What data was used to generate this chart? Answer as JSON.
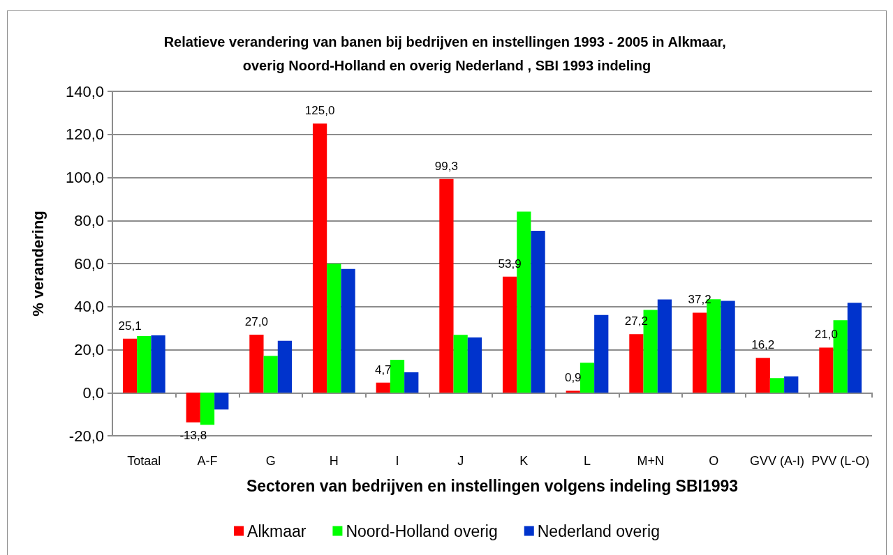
{
  "chart_data": {
    "type": "bar",
    "title": "Relatieve verandering van banen bij bedrijven en instellingen 1993 - 2005 in Alkmaar, overig Noord-Holland en overig Nederland , SBI 1993 indeling",
    "xlabel": "Sectoren van bedrijven en instellingen volgens indeling SBI1993",
    "ylabel": "% verandering",
    "categories": [
      "Totaal",
      "A-F",
      "G",
      "H",
      "I",
      "J",
      "K",
      "L",
      "M+N",
      "O",
      "GVV (A-I)",
      "PVV (L-O)"
    ],
    "ylim": [
      -20,
      140
    ],
    "yticks": [
      {
        "value": -20,
        "label": "-20,0"
      },
      {
        "value": 0,
        "label": "0,0"
      },
      {
        "value": 20,
        "label": "20,0"
      },
      {
        "value": 40,
        "label": "40,0"
      },
      {
        "value": 60,
        "label": "60,0"
      },
      {
        "value": 80,
        "label": "80,0"
      },
      {
        "value": 100,
        "label": "100,0"
      },
      {
        "value": 120,
        "label": "120,0"
      },
      {
        "value": 140,
        "label": "140,0"
      }
    ],
    "grid": "y",
    "legend": "bottom",
    "series": [
      {
        "name": "Alkmaar",
        "color": "#ff0000",
        "values": [
          25.1,
          -13.8,
          27.0,
          125.0,
          4.7,
          99.3,
          53.9,
          0.9,
          27.2,
          37.2,
          16.2,
          21.0
        ],
        "value_labels": [
          "25,1",
          "-13,8",
          "27,0",
          "125,0",
          "4,7",
          "99,3",
          "53,9",
          "0,9",
          "27,2",
          "37,2",
          "16,2",
          "21,0"
        ]
      },
      {
        "name": "Noord-Holland overig",
        "color": "#00ff00",
        "values": [
          26.3,
          -14.9,
          17.1,
          59.9,
          15.3,
          26.9,
          84.1,
          13.9,
          38.5,
          43.4,
          6.8,
          33.7
        ]
      },
      {
        "name": "Nederland overig",
        "color": "#0033cc",
        "values": [
          26.6,
          -7.8,
          24.1,
          57.5,
          9.5,
          25.7,
          75.2,
          36.1,
          43.3,
          42.7,
          7.6,
          41.8
        ]
      }
    ]
  }
}
